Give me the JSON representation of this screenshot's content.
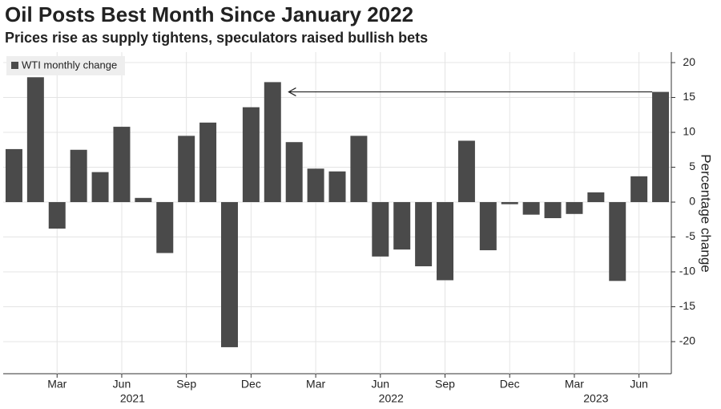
{
  "chart_data": {
    "type": "bar",
    "title": "Oil Posts Best Month Since January 2022",
    "subtitle": "Prices rise as supply tightens, speculators raised bullish bets",
    "y_axis_label": "Percentage change",
    "categories": [
      null,
      null,
      "Mar",
      null,
      null,
      "Jun",
      null,
      null,
      "Sep",
      null,
      null,
      "Dec",
      null,
      null,
      "Mar",
      null,
      null,
      "Jun",
      null,
      null,
      "Sep",
      null,
      null,
      "Dec",
      null,
      null,
      "Mar",
      null,
      null,
      "Jun",
      null
    ],
    "year_labels": [
      "2021",
      "2022",
      "2023"
    ],
    "series": [
      {
        "name": "WTI monthly change",
        "color": "#4a4a4a",
        "values": [
          7.6,
          17.9,
          -3.8,
          7.5,
          4.3,
          10.8,
          0.6,
          -7.3,
          9.5,
          11.4,
          -20.8,
          13.6,
          17.2,
          8.6,
          4.8,
          4.4,
          9.5,
          -7.8,
          -6.8,
          -9.2,
          -11.2,
          8.8,
          -6.9,
          -0.3,
          -1.8,
          -2.3,
          -1.7,
          1.4,
          -11.3,
          3.7,
          15.8
        ]
      }
    ],
    "ylim": [
      -24.6,
      21.5
    ],
    "yticks": [
      20,
      15,
      10,
      5,
      0,
      -5,
      -10,
      -15,
      -20
    ],
    "grid": true,
    "legend": "top-left"
  }
}
